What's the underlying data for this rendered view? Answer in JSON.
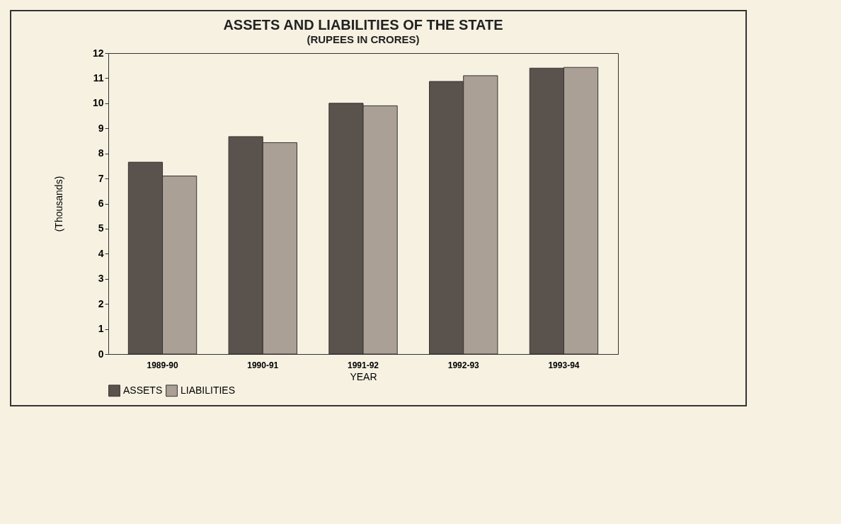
{
  "chart_data": {
    "type": "bar",
    "title": "ASSETS AND LIABILITIES OF THE STATE",
    "subtitle": "(RUPEES IN CRORES)",
    "xlabel": "YEAR",
    "ylabel": "(Thousands)",
    "categories": [
      "1989-90",
      "1990-91",
      "1991-92",
      "1992-93",
      "1993-94"
    ],
    "series": [
      {
        "name": "ASSETS",
        "color": "#5a524c",
        "values": [
          7.65,
          8.67,
          10.0,
          10.87,
          11.4
        ]
      },
      {
        "name": "LIABILITIES",
        "color": "#aaa096",
        "values": [
          7.1,
          8.43,
          9.9,
          11.1,
          11.43
        ]
      }
    ],
    "ylim": [
      0,
      12
    ],
    "yticks": [
      0,
      1,
      2,
      3,
      4,
      5,
      6,
      7,
      8,
      9,
      10,
      11,
      12
    ],
    "grid": false,
    "legend": "bottom"
  }
}
